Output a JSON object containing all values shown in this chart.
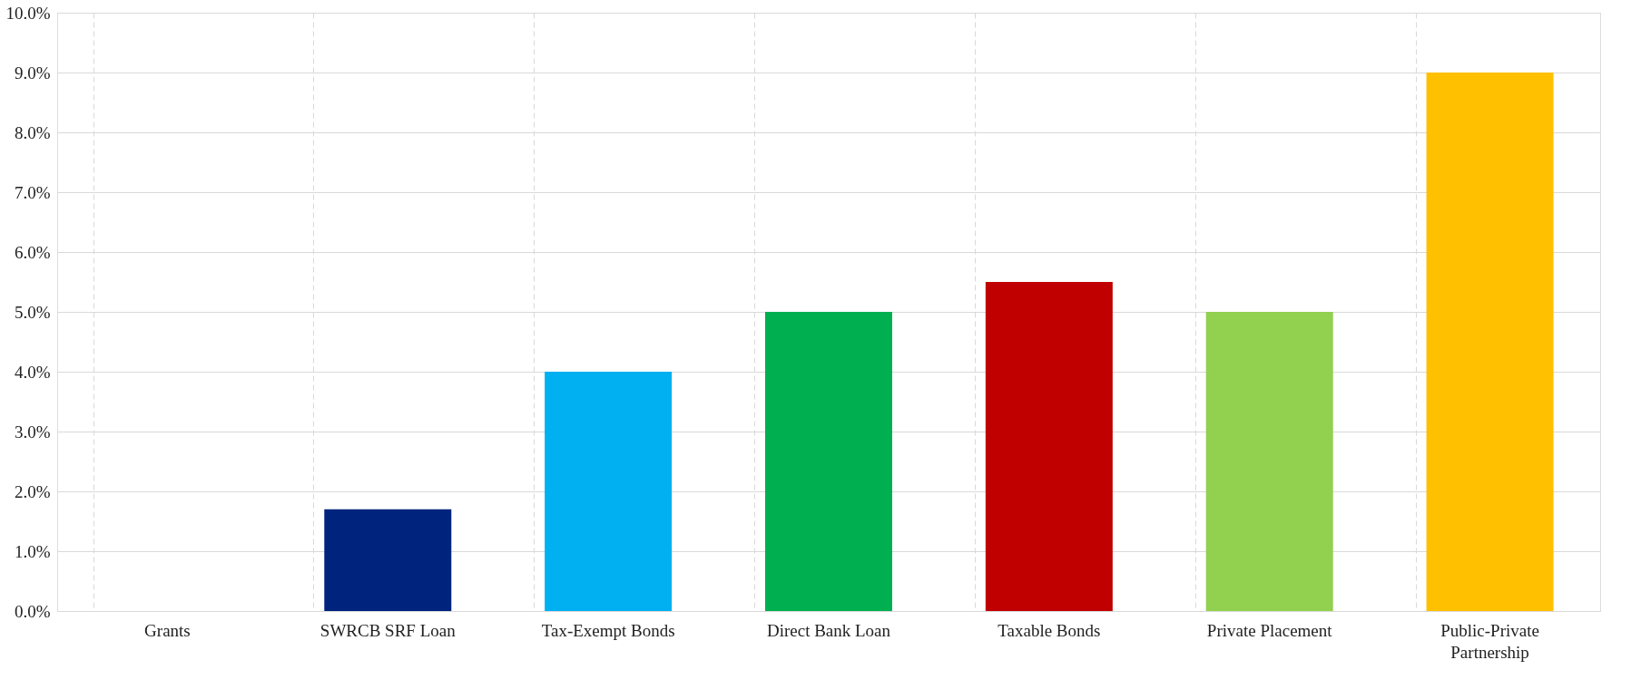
{
  "chart_data": {
    "type": "bar",
    "categories": [
      "Grants",
      "SWRCB SRF Loan",
      "Tax-Exempt Bonds",
      "Direct Bank Loan",
      "Taxable Bonds",
      "Private Placement",
      "Public-Private Partnership"
    ],
    "values": [
      0,
      1.7,
      4.0,
      5.0,
      5.5,
      5.0,
      9.0
    ],
    "colors": [
      "#4472c4",
      "#00247d",
      "#00b0f0",
      "#00b050",
      "#c00000",
      "#92d050",
      "#ffc000"
    ],
    "ylim": [
      0,
      10
    ],
    "yticks": [
      {
        "value": 0,
        "label": "0.0%"
      },
      {
        "value": 1,
        "label": "1.0%"
      },
      {
        "value": 2,
        "label": "2.0%"
      },
      {
        "value": 3,
        "label": "3.0%"
      },
      {
        "value": 4,
        "label": "4.0%"
      },
      {
        "value": 5,
        "label": "5.0%"
      },
      {
        "value": 6,
        "label": "6.0%"
      },
      {
        "value": 7,
        "label": "7.0%"
      },
      {
        "value": 8,
        "label": "8.0%"
      },
      {
        "value": 9,
        "label": "9.0%"
      },
      {
        "value": 10,
        "label": "10.0%"
      }
    ],
    "grid": true
  }
}
